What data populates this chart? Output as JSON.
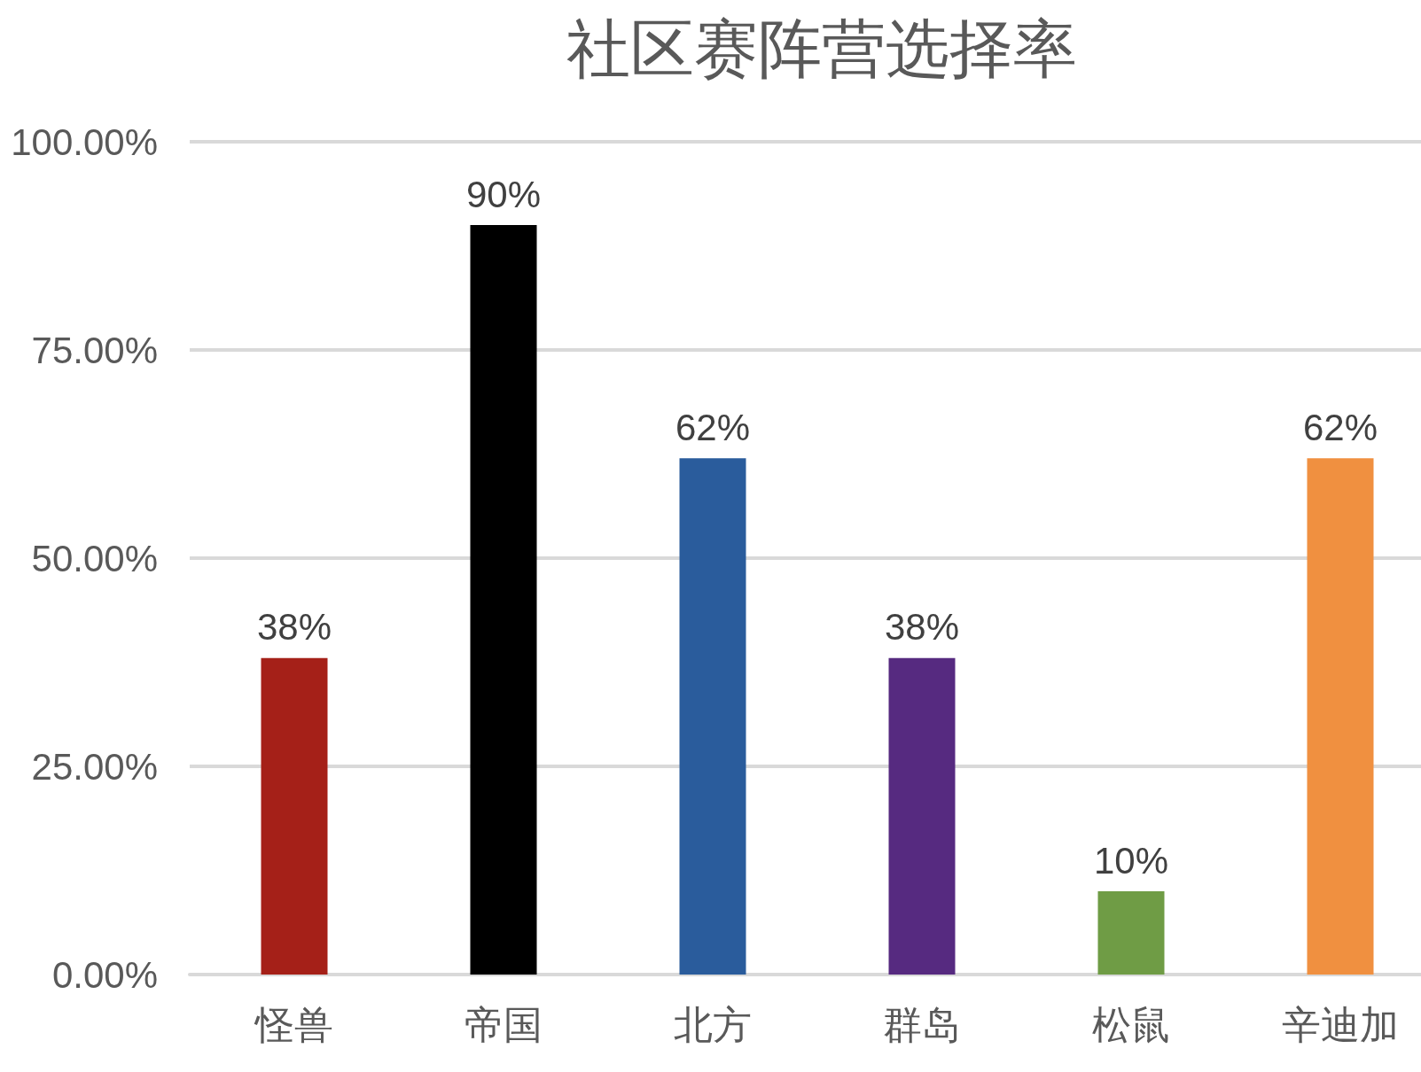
{
  "chart_data": {
    "type": "bar",
    "title": "社区赛阵营选择率",
    "categories": [
      "怪兽",
      "帝国",
      "北方",
      "群岛",
      "松鼠",
      "辛迪加"
    ],
    "values": [
      38,
      90,
      62,
      38,
      10,
      62
    ],
    "colors": [
      "#a52018",
      "#000000",
      "#2a5c9c",
      "#562a80",
      "#6f9c45",
      "#f09040"
    ],
    "value_labels": [
      "38%",
      "90%",
      "62%",
      "38%",
      "10%",
      "62%"
    ],
    "ylim": [
      0,
      100
    ],
    "yticks": [
      {
        "value": 0,
        "label": "0.00%"
      },
      {
        "value": 25,
        "label": "25.00%"
      },
      {
        "value": 50,
        "label": "50.00%"
      },
      {
        "value": 75,
        "label": "75.00%"
      },
      {
        "value": 100,
        "label": "100.00%"
      }
    ],
    "grid": "y"
  }
}
